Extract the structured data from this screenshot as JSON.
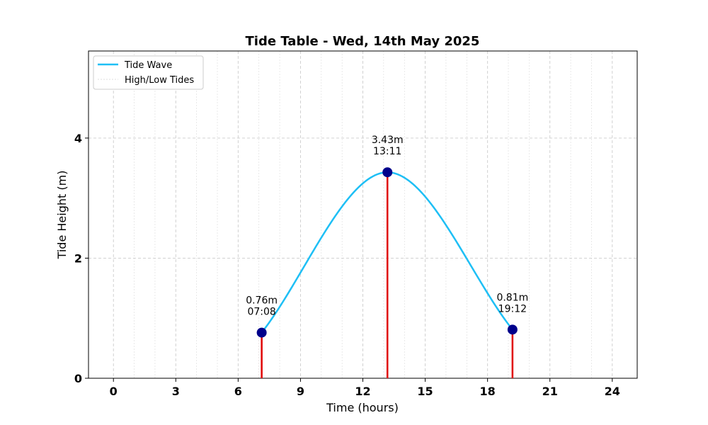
{
  "chart_data": {
    "type": "line",
    "title": "Tide Table - Wed, 14th May 2025",
    "xlabel": "Time (hours)",
    "ylabel": "Tide Height (m)",
    "xlim": [
      -1.2,
      25.2
    ],
    "ylim": [
      0,
      5.45
    ],
    "xticks": [
      0,
      3,
      6,
      9,
      12,
      15,
      18,
      21,
      24
    ],
    "yticks": [
      0,
      2,
      4
    ],
    "grid": true,
    "legend_position": "top-left",
    "series": [
      {
        "name": "Tide Wave",
        "color": "#1EBFF5",
        "style": "line"
      },
      {
        "name": "High/Low Tides",
        "color": "#dddddd",
        "style": "dotted"
      }
    ],
    "tides": [
      {
        "time": 7.133,
        "height": 0.76,
        "height_label": "0.76m",
        "time_label": "07:08"
      },
      {
        "time": 13.183,
        "height": 3.43,
        "height_label": "3.43m",
        "time_label": "13:11"
      },
      {
        "time": 19.2,
        "height": 0.81,
        "height_label": "0.81m",
        "time_label": "19:12"
      }
    ],
    "colors": {
      "curve": "#1EBFF5",
      "marker": "#00008B",
      "stem": "#E00000",
      "grid": "#cccccc"
    }
  }
}
